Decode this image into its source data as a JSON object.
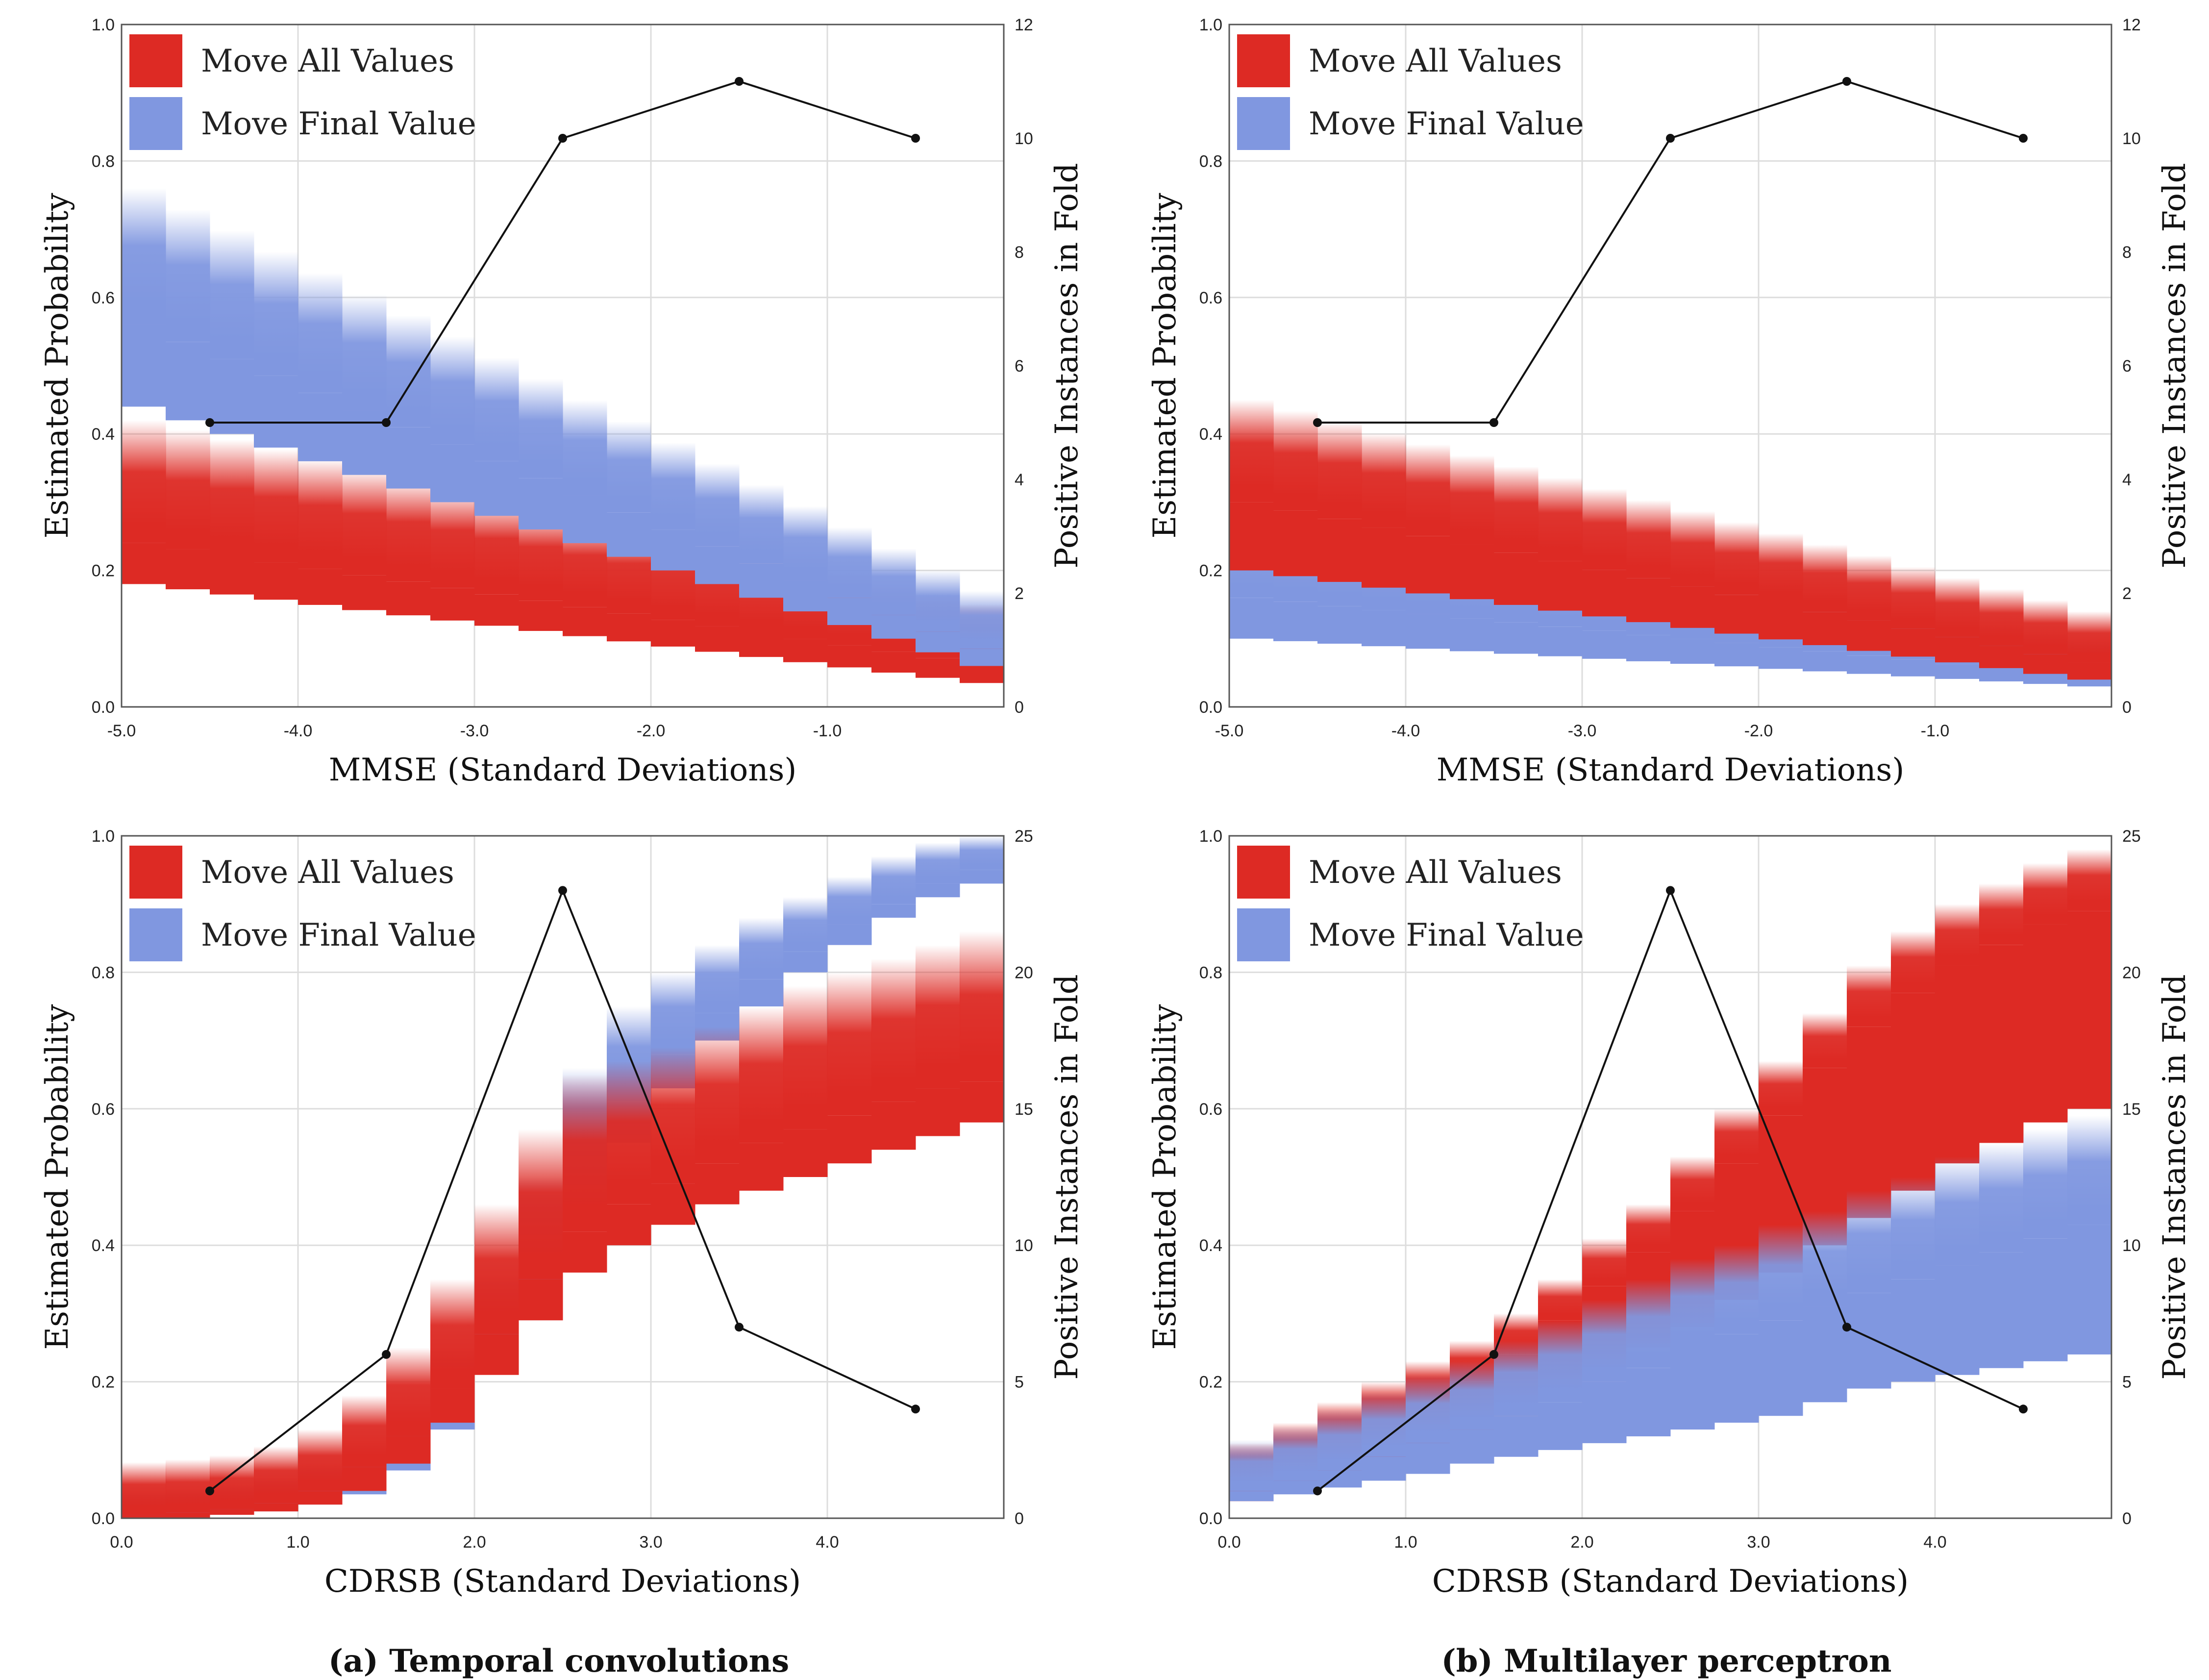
{
  "colors": {
    "move_all": "#dd2a24",
    "move_final": "#8097e0",
    "line": "#111111",
    "grid": "#dddddd"
  },
  "captions": {
    "a": "(a) Temporal convolutions",
    "b": "(b) Multilayer perceptron"
  },
  "chart_data": [
    {
      "id": "tl",
      "type": "band",
      "xlabel": "MMSE (Standard Deviations)",
      "ylabel": "Estimated Probability",
      "y2label": "Positive Instances in Fold",
      "xlim": [
        -5,
        0
      ],
      "ylim": [
        0,
        1
      ],
      "y2lim": [
        0,
        12
      ],
      "xticks": [
        -5,
        -4,
        -3,
        -2,
        -1
      ],
      "xtick_labels": [
        "-5.0",
        "-4.0",
        "-3.0",
        "-2.0",
        "-1.0"
      ],
      "yticks": [
        0,
        0.2,
        0.4,
        0.6,
        0.8,
        1.0
      ],
      "ytick_labels": [
        "0.0",
        "0.2",
        "0.4",
        "0.6",
        "0.8",
        "1.0"
      ],
      "y2ticks": [
        0,
        2,
        4,
        6,
        8,
        10,
        12
      ],
      "y2tick_labels": [
        "0",
        "2",
        "4",
        "6",
        "8",
        "10",
        "12"
      ],
      "legend": [
        "Move All Values",
        "Move Final Value"
      ],
      "bin_width": 0.25,
      "series": [
        {
          "name": "Move All Values",
          "color": "move_all",
          "x": [
            -5,
            -0.25
          ],
          "lo": [
            0.18,
            0.035
          ],
          "mid": [
            0.24,
            0.062
          ],
          "hi": [
            0.36,
            0.09
          ],
          "fade": 0.06
        },
        {
          "name": "Move Final Value",
          "color": "move_final",
          "x": [
            -5,
            -0.25
          ],
          "lo": [
            0.44,
            0.06
          ],
          "mid": [
            0.56,
            0.085
          ],
          "hi": [
            0.7,
            0.11
          ],
          "fade": 0.06
        }
      ],
      "line": {
        "x": [
          -4.5,
          -3.5,
          -2.5,
          -1.5,
          -0.5
        ],
        "y": [
          5,
          5,
          10,
          11,
          10
        ]
      }
    },
    {
      "id": "tr",
      "type": "band",
      "xlabel": "MMSE (Standard Deviations)",
      "ylabel": "Estimated Probability",
      "y2label": "Positive Instances in Fold",
      "xlim": [
        -5,
        0
      ],
      "ylim": [
        0,
        1
      ],
      "y2lim": [
        0,
        12
      ],
      "xticks": [
        -5,
        -4,
        -3,
        -2,
        -1
      ],
      "xtick_labels": [
        "-5.0",
        "-4.0",
        "-3.0",
        "-2.0",
        "-1.0"
      ],
      "yticks": [
        0,
        0.2,
        0.4,
        0.6,
        0.8,
        1.0
      ],
      "ytick_labels": [
        "0.0",
        "0.2",
        "0.4",
        "0.6",
        "0.8",
        "1.0"
      ],
      "y2ticks": [
        0,
        2,
        4,
        6,
        8,
        10,
        12
      ],
      "y2tick_labels": [
        "0",
        "2",
        "4",
        "6",
        "8",
        "10",
        "12"
      ],
      "legend": [
        "Move All Values",
        "Move Final Value"
      ],
      "bin_width": 0.25,
      "series": [
        {
          "name": "Move Final Value",
          "color": "move_final",
          "x": [
            -5,
            -0.25
          ],
          "lo": [
            0.1,
            0.03
          ],
          "mid": [
            0.16,
            0.045
          ],
          "hi": [
            0.24,
            0.06
          ],
          "fade": 0.04
        },
        {
          "name": "Move All Values",
          "color": "move_all",
          "x": [
            -5,
            -0.25
          ],
          "lo": [
            0.2,
            0.04
          ],
          "mid": [
            0.3,
            0.065
          ],
          "hi": [
            0.4,
            0.09
          ],
          "fade": 0.05
        }
      ],
      "line": {
        "x": [
          -4.5,
          -3.5,
          -2.5,
          -1.5,
          -0.5
        ],
        "y": [
          5,
          5,
          10,
          11,
          10
        ]
      }
    },
    {
      "id": "bl",
      "type": "band",
      "xlabel": "CDRSB (Standard Deviations)",
      "ylabel": "Estimated Probability",
      "y2label": "Positive Instances in Fold",
      "xlim": [
        0,
        5
      ],
      "ylim": [
        0,
        1
      ],
      "y2lim": [
        0,
        25
      ],
      "xticks": [
        0,
        1,
        2,
        3,
        4
      ],
      "xtick_labels": [
        "0.0",
        "1.0",
        "2.0",
        "3.0",
        "4.0"
      ],
      "yticks": [
        0,
        0.2,
        0.4,
        0.6,
        0.8,
        1.0
      ],
      "ytick_labels": [
        "0.0",
        "0.2",
        "0.4",
        "0.6",
        "0.8",
        "1.0"
      ],
      "y2ticks": [
        0,
        5,
        10,
        15,
        20,
        25
      ],
      "y2tick_labels": [
        "0",
        "5",
        "10",
        "15",
        "20",
        "25"
      ],
      "legend": [
        "Move All Values",
        "Move Final Value"
      ],
      "bin_width": 0.25,
      "series": [
        {
          "name": "Move Final Value",
          "color": "move_final",
          "x": [
            0,
            0.25,
            0.5,
            0.75,
            1.0,
            1.25,
            1.5,
            1.75,
            2.0,
            2.25,
            2.5,
            2.75,
            3.0,
            3.25,
            3.5,
            3.75,
            4.0,
            4.25,
            4.5,
            4.75
          ],
          "lo": [
            0.0,
            0.0,
            0.005,
            0.01,
            0.02,
            0.035,
            0.07,
            0.13,
            0.22,
            0.34,
            0.45,
            0.55,
            0.63,
            0.7,
            0.75,
            0.8,
            0.84,
            0.88,
            0.91,
            0.93
          ],
          "mid": [
            0.004,
            0.007,
            0.012,
            0.02,
            0.035,
            0.055,
            0.1,
            0.17,
            0.27,
            0.39,
            0.52,
            0.61,
            0.68,
            0.74,
            0.79,
            0.83,
            0.87,
            0.9,
            0.93,
            0.95
          ],
          "hi": [
            0.01,
            0.012,
            0.02,
            0.03,
            0.05,
            0.08,
            0.13,
            0.22,
            0.33,
            0.47,
            0.63,
            0.72,
            0.77,
            0.81,
            0.85,
            0.88,
            0.91,
            0.94,
            0.96,
            0.97
          ],
          "fade": 0.03
        },
        {
          "name": "Move All Values",
          "color": "move_all",
          "x": [
            0,
            0.25,
            0.5,
            0.75,
            1.0,
            1.25,
            1.5,
            1.75,
            2.0,
            2.25,
            2.5,
            2.75,
            3.0,
            3.25,
            3.5,
            3.75,
            4.0,
            4.25,
            4.5,
            4.75
          ],
          "lo": [
            0.0,
            0.0,
            0.005,
            0.01,
            0.02,
            0.04,
            0.08,
            0.14,
            0.21,
            0.29,
            0.36,
            0.4,
            0.43,
            0.46,
            0.48,
            0.5,
            0.52,
            0.54,
            0.56,
            0.58
          ],
          "mid": [
            0.005,
            0.008,
            0.013,
            0.022,
            0.04,
            0.075,
            0.12,
            0.19,
            0.27,
            0.35,
            0.42,
            0.46,
            0.49,
            0.52,
            0.55,
            0.57,
            0.59,
            0.61,
            0.63,
            0.64
          ],
          "hi": [
            0.012,
            0.016,
            0.022,
            0.035,
            0.06,
            0.11,
            0.18,
            0.28,
            0.39,
            0.5,
            0.58,
            0.6,
            0.62,
            0.65,
            0.68,
            0.71,
            0.73,
            0.75,
            0.77,
            0.79
          ],
          "fade": 0.07
        }
      ],
      "line": {
        "x": [
          0.5,
          1.5,
          2.5,
          3.5,
          4.5
        ],
        "y": [
          1,
          6,
          23,
          7,
          4
        ]
      }
    },
    {
      "id": "br",
      "type": "band",
      "xlabel": "CDRSB (Standard Deviations)",
      "ylabel": "Estimated Probability",
      "y2label": "Positive Instances in Fold",
      "xlim": [
        0,
        5
      ],
      "ylim": [
        0,
        1
      ],
      "y2lim": [
        0,
        25
      ],
      "xticks": [
        0,
        1,
        2,
        3,
        4
      ],
      "xtick_labels": [
        "0.0",
        "1.0",
        "2.0",
        "3.0",
        "4.0"
      ],
      "yticks": [
        0,
        0.2,
        0.4,
        0.6,
        0.8,
        1.0
      ],
      "ytick_labels": [
        "0.0",
        "0.2",
        "0.4",
        "0.6",
        "0.8",
        "1.0"
      ],
      "y2ticks": [
        0,
        5,
        10,
        15,
        20,
        25
      ],
      "y2tick_labels": [
        "0",
        "5",
        "10",
        "15",
        "20",
        "25"
      ],
      "legend": [
        "Move All Values",
        "Move Final Value"
      ],
      "bin_width": 0.25,
      "series": [
        {
          "name": "Move All Values",
          "color": "move_all",
          "x": [
            0,
            0.25,
            0.5,
            0.75,
            1.0,
            1.25,
            1.5,
            1.75,
            2.0,
            2.25,
            2.5,
            2.75,
            3.0,
            3.25,
            3.5,
            3.75,
            4.0,
            4.25,
            4.5,
            4.75
          ],
          "lo": [
            0.025,
            0.04,
            0.055,
            0.075,
            0.1,
            0.12,
            0.15,
            0.18,
            0.21,
            0.25,
            0.28,
            0.32,
            0.36,
            0.4,
            0.44,
            0.48,
            0.52,
            0.55,
            0.58,
            0.6
          ],
          "mid": [
            0.06,
            0.08,
            0.11,
            0.14,
            0.17,
            0.2,
            0.24,
            0.29,
            0.34,
            0.39,
            0.45,
            0.52,
            0.59,
            0.66,
            0.72,
            0.77,
            0.81,
            0.84,
            0.87,
            0.89
          ],
          "hi": [
            0.08,
            0.11,
            0.14,
            0.17,
            0.2,
            0.23,
            0.27,
            0.32,
            0.38,
            0.43,
            0.5,
            0.57,
            0.64,
            0.71,
            0.78,
            0.83,
            0.87,
            0.9,
            0.93,
            0.95
          ],
          "fade": 0.03
        },
        {
          "name": "Move Final Value",
          "color": "move_final",
          "x": [
            0,
            0.25,
            0.5,
            0.75,
            1.0,
            1.25,
            1.5,
            1.75,
            2.0,
            2.25,
            2.5,
            2.75,
            3.0,
            3.25,
            3.5,
            3.75,
            4.0,
            4.25,
            4.5,
            4.75
          ],
          "lo": [
            0.025,
            0.035,
            0.045,
            0.055,
            0.065,
            0.08,
            0.09,
            0.1,
            0.11,
            0.12,
            0.13,
            0.14,
            0.15,
            0.17,
            0.19,
            0.2,
            0.21,
            0.22,
            0.23,
            0.24
          ],
          "mid": [
            0.04,
            0.055,
            0.07,
            0.09,
            0.11,
            0.13,
            0.15,
            0.17,
            0.2,
            0.22,
            0.25,
            0.27,
            0.29,
            0.31,
            0.33,
            0.35,
            0.37,
            0.39,
            0.41,
            0.43
          ],
          "hi": [
            0.055,
            0.075,
            0.1,
            0.125,
            0.15,
            0.17,
            0.2,
            0.23,
            0.26,
            0.29,
            0.32,
            0.34,
            0.37,
            0.39,
            0.42,
            0.44,
            0.47,
            0.49,
            0.51,
            0.53
          ],
          "fade": 0.06
        }
      ],
      "line": {
        "x": [
          0.5,
          1.5,
          2.5,
          3.5,
          4.5
        ],
        "y": [
          1,
          6,
          23,
          7,
          4
        ]
      }
    }
  ]
}
